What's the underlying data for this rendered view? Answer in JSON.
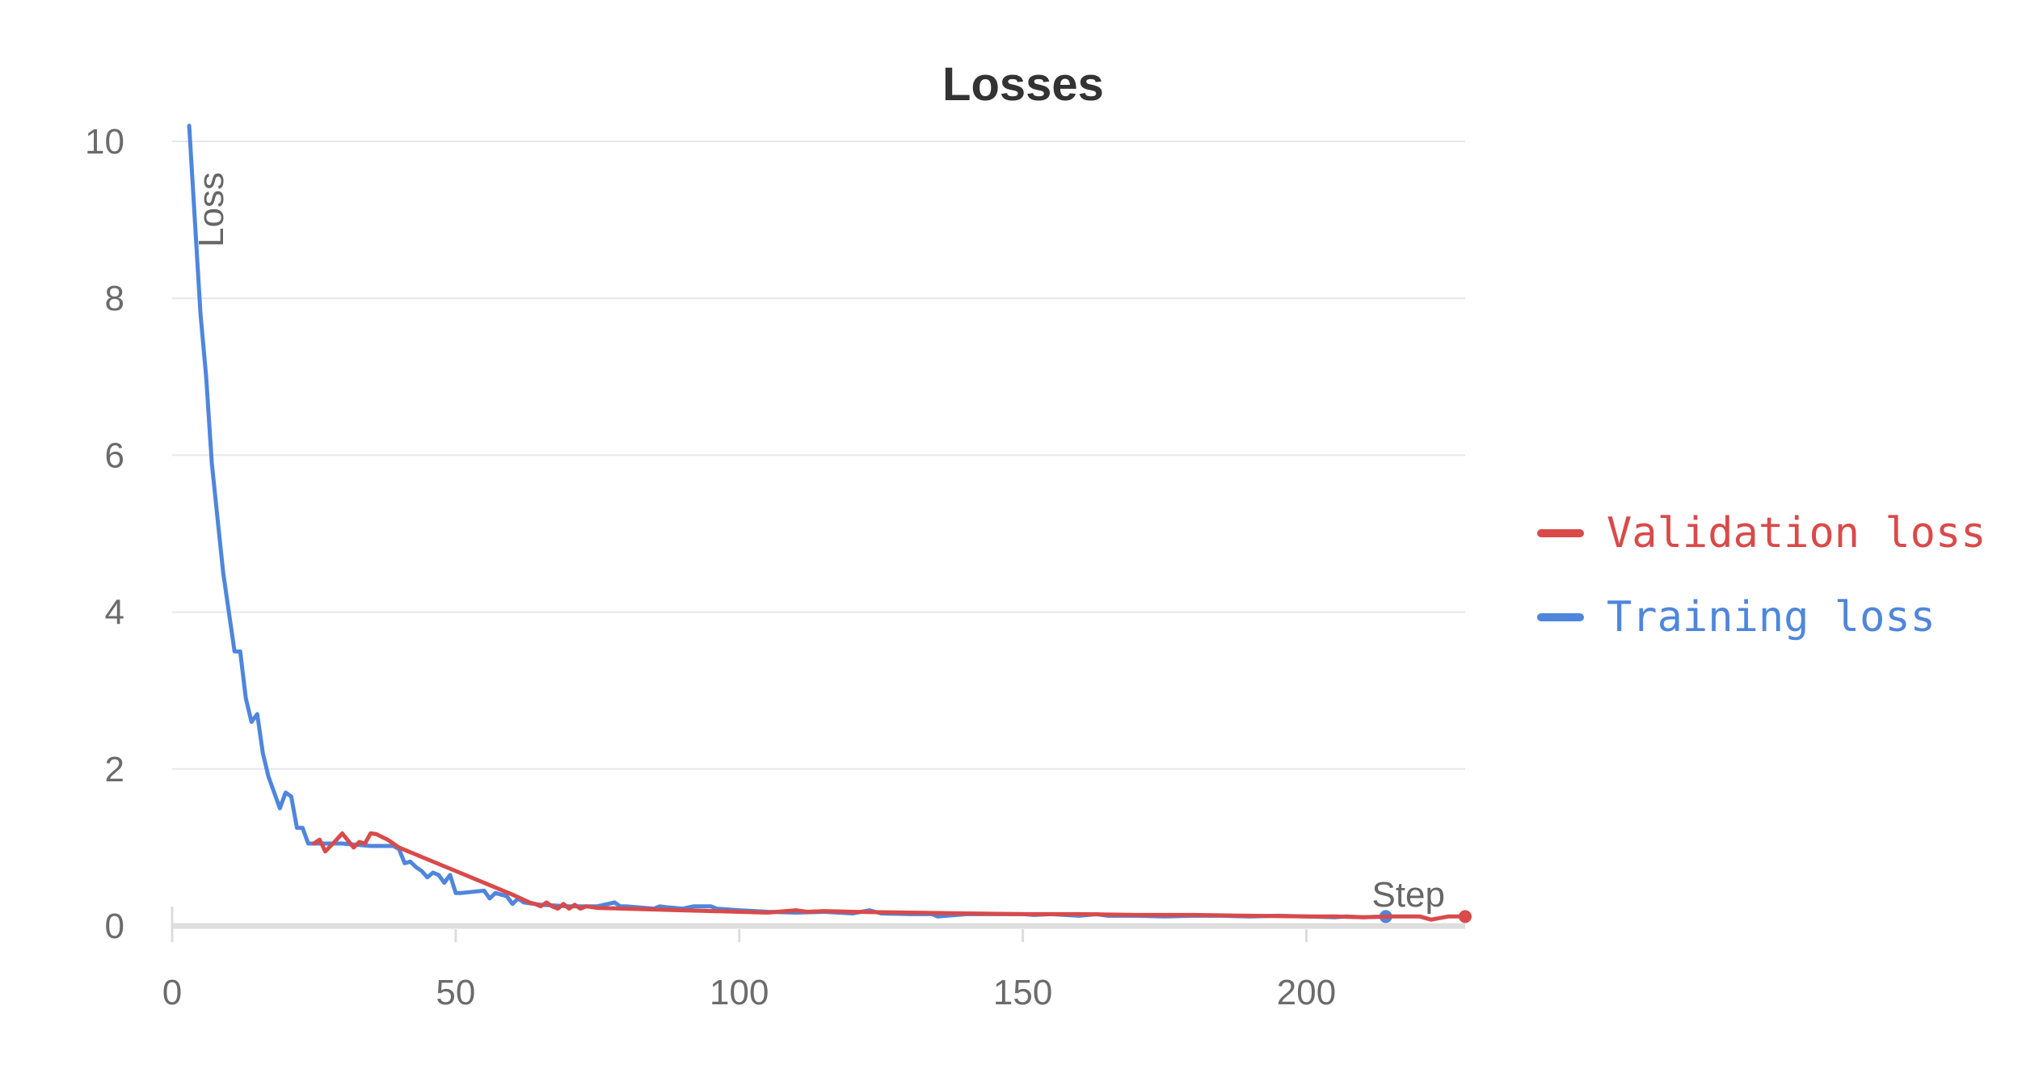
{
  "chart_data": {
    "type": "line",
    "title": "Losses",
    "xlabel": "Step",
    "ylabel": "Loss",
    "xlim": [
      0,
      228
    ],
    "ylim": [
      0,
      10
    ],
    "x_ticks": [
      "0",
      "50",
      "100",
      "150",
      "200"
    ],
    "y_ticks": [
      "0",
      "2",
      "4",
      "6",
      "8",
      "10"
    ],
    "grid": true,
    "legend_position": "right",
    "series": [
      {
        "name": "Validation loss",
        "color": "#d94a4a",
        "x": [
          25,
          26,
          27,
          29,
          30,
          32,
          33,
          34,
          35,
          36,
          38,
          40,
          45,
          50,
          55,
          60,
          63,
          64,
          65,
          66,
          67,
          68,
          69,
          70,
          71,
          72,
          73,
          75,
          80,
          90,
          100,
          105,
          110,
          112,
          115,
          120,
          130,
          140,
          150,
          160,
          170,
          180,
          190,
          200,
          205,
          210,
          215,
          220,
          222,
          225,
          228
        ],
        "y": [
          1.05,
          1.1,
          0.95,
          1.1,
          1.18,
          1.0,
          1.07,
          1.05,
          1.18,
          1.17,
          1.1,
          1.0,
          0.85,
          0.7,
          0.55,
          0.4,
          0.3,
          0.28,
          0.25,
          0.3,
          0.25,
          0.22,
          0.28,
          0.22,
          0.27,
          0.22,
          0.25,
          0.23,
          0.22,
          0.2,
          0.18,
          0.17,
          0.2,
          0.18,
          0.19,
          0.18,
          0.17,
          0.16,
          0.15,
          0.15,
          0.14,
          0.14,
          0.13,
          0.12,
          0.12,
          0.11,
          0.12,
          0.12,
          0.08,
          0.12,
          0.12
        ]
      },
      {
        "name": "Training loss",
        "color": "#4f86dc",
        "x": [
          3,
          4,
          5,
          6,
          7,
          8,
          9,
          10,
          11,
          12,
          13,
          14,
          15,
          16,
          17,
          18,
          19,
          20,
          21,
          22,
          23,
          24,
          26,
          30,
          35,
          39,
          40,
          41,
          42,
          43,
          44,
          45,
          46,
          47,
          48,
          49,
          50,
          51,
          55,
          56,
          57,
          58,
          59,
          60,
          61,
          62,
          65,
          70,
          75,
          78,
          79,
          80,
          85,
          86,
          87,
          90,
          92,
          95,
          96,
          100,
          105,
          110,
          115,
          120,
          123,
          125,
          130,
          134,
          135,
          140,
          145,
          150,
          152,
          155,
          160,
          163,
          165,
          170,
          175,
          180,
          185,
          190,
          195,
          200,
          205,
          207,
          210,
          214
        ],
        "y": [
          10.2,
          9.0,
          7.8,
          7.0,
          5.9,
          5.2,
          4.5,
          4.0,
          3.5,
          3.5,
          2.9,
          2.6,
          2.7,
          2.2,
          1.9,
          1.7,
          1.5,
          1.7,
          1.65,
          1.25,
          1.25,
          1.05,
          1.05,
          1.05,
          1.02,
          1.02,
          0.98,
          0.8,
          0.82,
          0.75,
          0.7,
          0.62,
          0.68,
          0.65,
          0.55,
          0.65,
          0.42,
          0.42,
          0.45,
          0.35,
          0.42,
          0.4,
          0.38,
          0.28,
          0.35,
          0.3,
          0.27,
          0.25,
          0.25,
          0.3,
          0.25,
          0.25,
          0.22,
          0.25,
          0.24,
          0.22,
          0.25,
          0.25,
          0.22,
          0.2,
          0.18,
          0.17,
          0.18,
          0.16,
          0.2,
          0.16,
          0.15,
          0.15,
          0.12,
          0.15,
          0.15,
          0.15,
          0.14,
          0.15,
          0.13,
          0.15,
          0.13,
          0.13,
          0.12,
          0.13,
          0.13,
          0.12,
          0.13,
          0.12,
          0.11,
          0.12,
          0.11,
          0.12
        ]
      }
    ]
  }
}
